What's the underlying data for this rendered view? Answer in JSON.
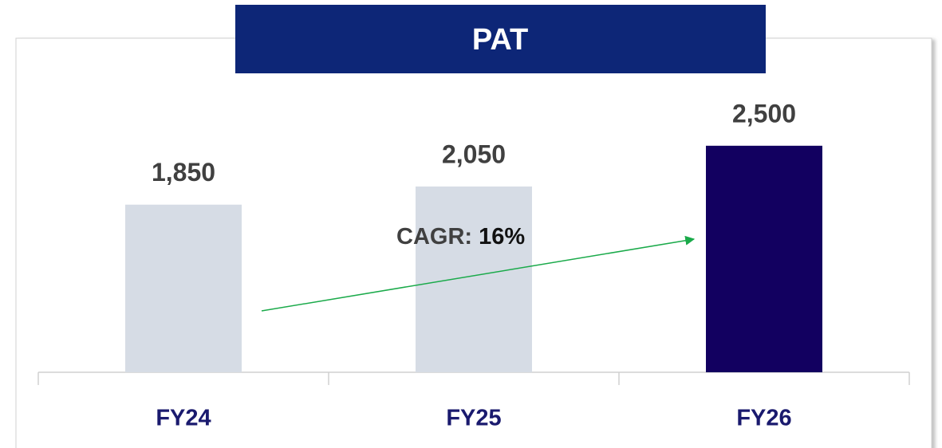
{
  "chart_data": {
    "type": "bar",
    "title": "PAT",
    "categories": [
      "FY24",
      "FY25",
      "FY26"
    ],
    "values": [
      1850,
      2050,
      2500
    ],
    "value_labels": [
      "1,850",
      "2,050",
      "2,500"
    ],
    "colors": [
      "#d6dce5",
      "#d6dce5",
      "#120060"
    ],
    "ylim": [
      0,
      3000
    ],
    "annotation": {
      "label": "CAGR:",
      "value": "16%"
    }
  }
}
